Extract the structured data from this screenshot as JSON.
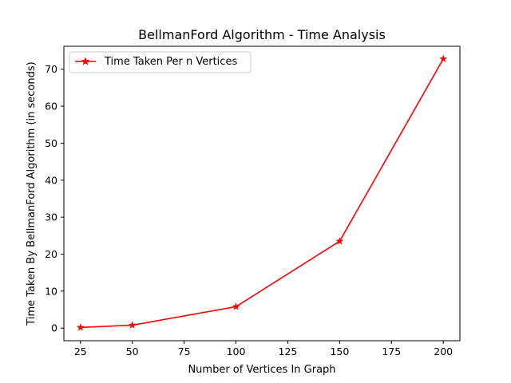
{
  "chart_data": {
    "type": "line",
    "title": "BellmanFord Algorithm - Time Analysis",
    "xlabel": "Number of Vertices In Graph",
    "ylabel": "Time Taken By BellmanFord Algorithm (in seconds)",
    "xlim": [
      17,
      208
    ],
    "ylim": [
      -3.4,
      76.2
    ],
    "xticks": [
      25,
      50,
      75,
      100,
      125,
      150,
      175,
      200
    ],
    "yticks": [
      0,
      10,
      20,
      30,
      40,
      50,
      60,
      70
    ],
    "grid": false,
    "legend_position": "top-left",
    "series": [
      {
        "name": "Time Taken Per n Vertices",
        "color": "#ff0000",
        "marker": "star",
        "x": [
          25,
          50,
          100,
          150,
          200
        ],
        "y": [
          0.2,
          0.8,
          5.8,
          23.5,
          72.8
        ]
      }
    ]
  }
}
